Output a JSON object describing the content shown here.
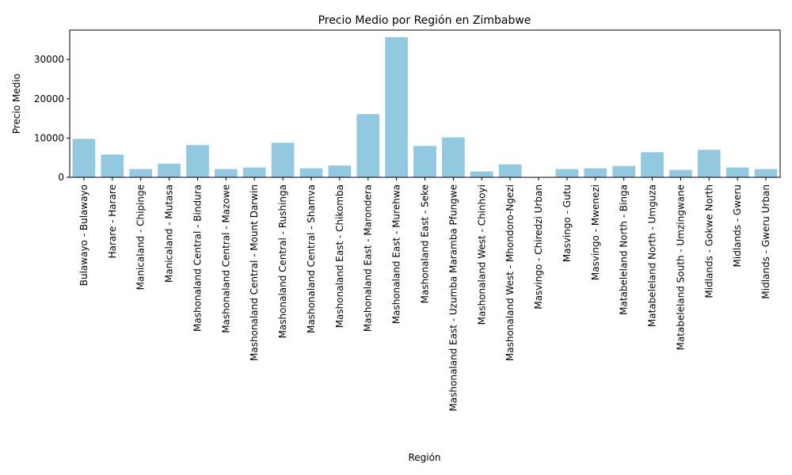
{
  "chart_data": {
    "type": "bar",
    "title": "Precio Medio por Región en Zimbabwe",
    "xlabel": "Región",
    "ylabel": "Precio Medio",
    "ylim": [
      0,
      37500
    ],
    "yticks": [
      0,
      10000,
      20000,
      30000
    ],
    "grid": false,
    "bar_color": "#92c9e1",
    "categories": [
      "Bulawayo - Bulawayo",
      "Harare - Harare",
      "Manicaland - Chipinge",
      "Manicaland - Mutasa",
      "Mashonaland Central - Bindura",
      "Mashonaland Central - Mazowe",
      "Mashonaland Central - Mount Darwin",
      "Mashonaland Central - Rushinga",
      "Mashonaland Central - Shamva",
      "Mashonaland East - Chikomba",
      "Mashonaland East - Marondera",
      "Mashonaland East - Murehwa",
      "Mashonaland East - Seke",
      "Mashonaland East - Uzumba Maramba Pfungwe",
      "Mashonaland West - Chinhoyi",
      "Mashonaland West - Mhondoro-Ngezi",
      "Masvingo - Chiredzi Urban",
      "Masvingo - Gutu",
      "Masvingo - Mwenezi",
      "Matabeleland North - Binga",
      "Matabeleland North - Umguza",
      "Matabeleland South - Umzingwane",
      "Midlands - Gokwe North",
      "Midlands - Gweru",
      "Midlands - Gweru Urban"
    ],
    "values": [
      9800,
      5800,
      2100,
      3500,
      8200,
      2100,
      2500,
      8800,
      2300,
      3000,
      16100,
      35700,
      8000,
      10200,
      1500,
      3300,
      0,
      2100,
      2300,
      2900,
      6400,
      1900,
      7000,
      2500,
      2100
    ]
  }
}
